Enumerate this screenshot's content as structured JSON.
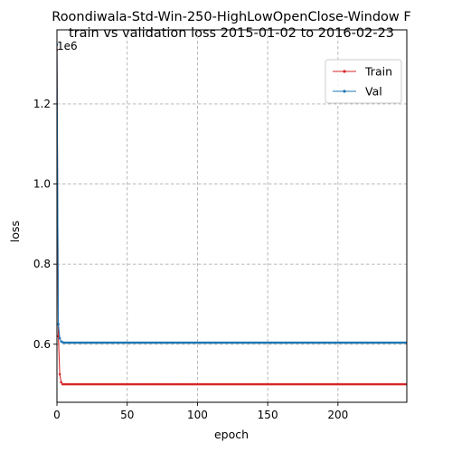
{
  "chart_data": {
    "type": "line",
    "title": [
      "Roondiwala-Std-Win-250-HighLowOpenClose-Window F",
      "train vs validation loss 2015-01-02 to 2016-02-23"
    ],
    "xlabel": "epoch",
    "ylabel": "loss",
    "y_scale_note": "1e6",
    "xlim": [
      0,
      249
    ],
    "ylim": [
      455000,
      1385000
    ],
    "xticks": [
      0,
      50,
      100,
      150,
      200
    ],
    "yticks": [
      600000,
      800000,
      1000000,
      1200000
    ],
    "ytick_labels": [
      "0.6",
      "0.8",
      "1.0",
      "1.2"
    ],
    "grid": true,
    "legend_position": "top-right",
    "series": [
      {
        "name": "Train",
        "color": "#d62728",
        "marker": "dot",
        "head": [
          [
            0,
            1335000
          ],
          [
            1,
            620000
          ],
          [
            2,
            525000
          ],
          [
            3,
            505000
          ],
          [
            4,
            500000
          ]
        ],
        "tail_value": 500000,
        "tail_range": [
          5,
          249
        ]
      },
      {
        "name": "Val",
        "color": "#1f77b4",
        "marker": "dot",
        "head": [
          [
            0,
            1348000
          ],
          [
            1,
            650000
          ],
          [
            2,
            615000
          ],
          [
            3,
            607000
          ],
          [
            4,
            605000
          ]
        ],
        "tail_value": 604000,
        "tail_range": [
          5,
          249
        ]
      }
    ]
  }
}
